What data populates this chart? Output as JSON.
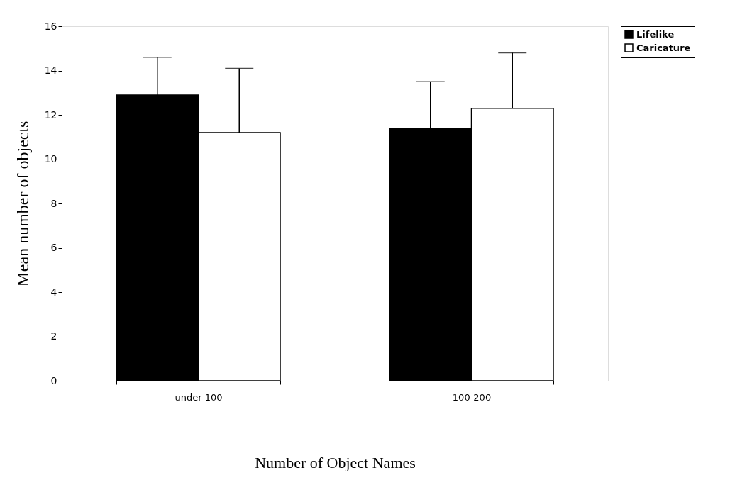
{
  "chart_data": {
    "type": "bar",
    "xlabel": "Number of Object Names",
    "ylabel": "Mean number of objects",
    "categories": [
      "under 100",
      "100-200"
    ],
    "series": [
      {
        "name": "Lifelike",
        "color": "#000000",
        "values": [
          12.9,
          11.4
        ],
        "errors": [
          [
            12.9,
            14.6
          ],
          [
            11.4,
            13.5
          ]
        ]
      },
      {
        "name": "Caricature",
        "color": "#ffffff",
        "values": [
          11.2,
          12.3
        ],
        "errors": [
          [
            11.2,
            14.1
          ],
          [
            12.3,
            14.8
          ]
        ]
      }
    ],
    "ylim": [
      0,
      16
    ],
    "yticks": [
      0,
      2,
      4,
      6,
      8,
      10,
      12,
      14,
      16
    ],
    "grid": false,
    "legend": "right"
  }
}
